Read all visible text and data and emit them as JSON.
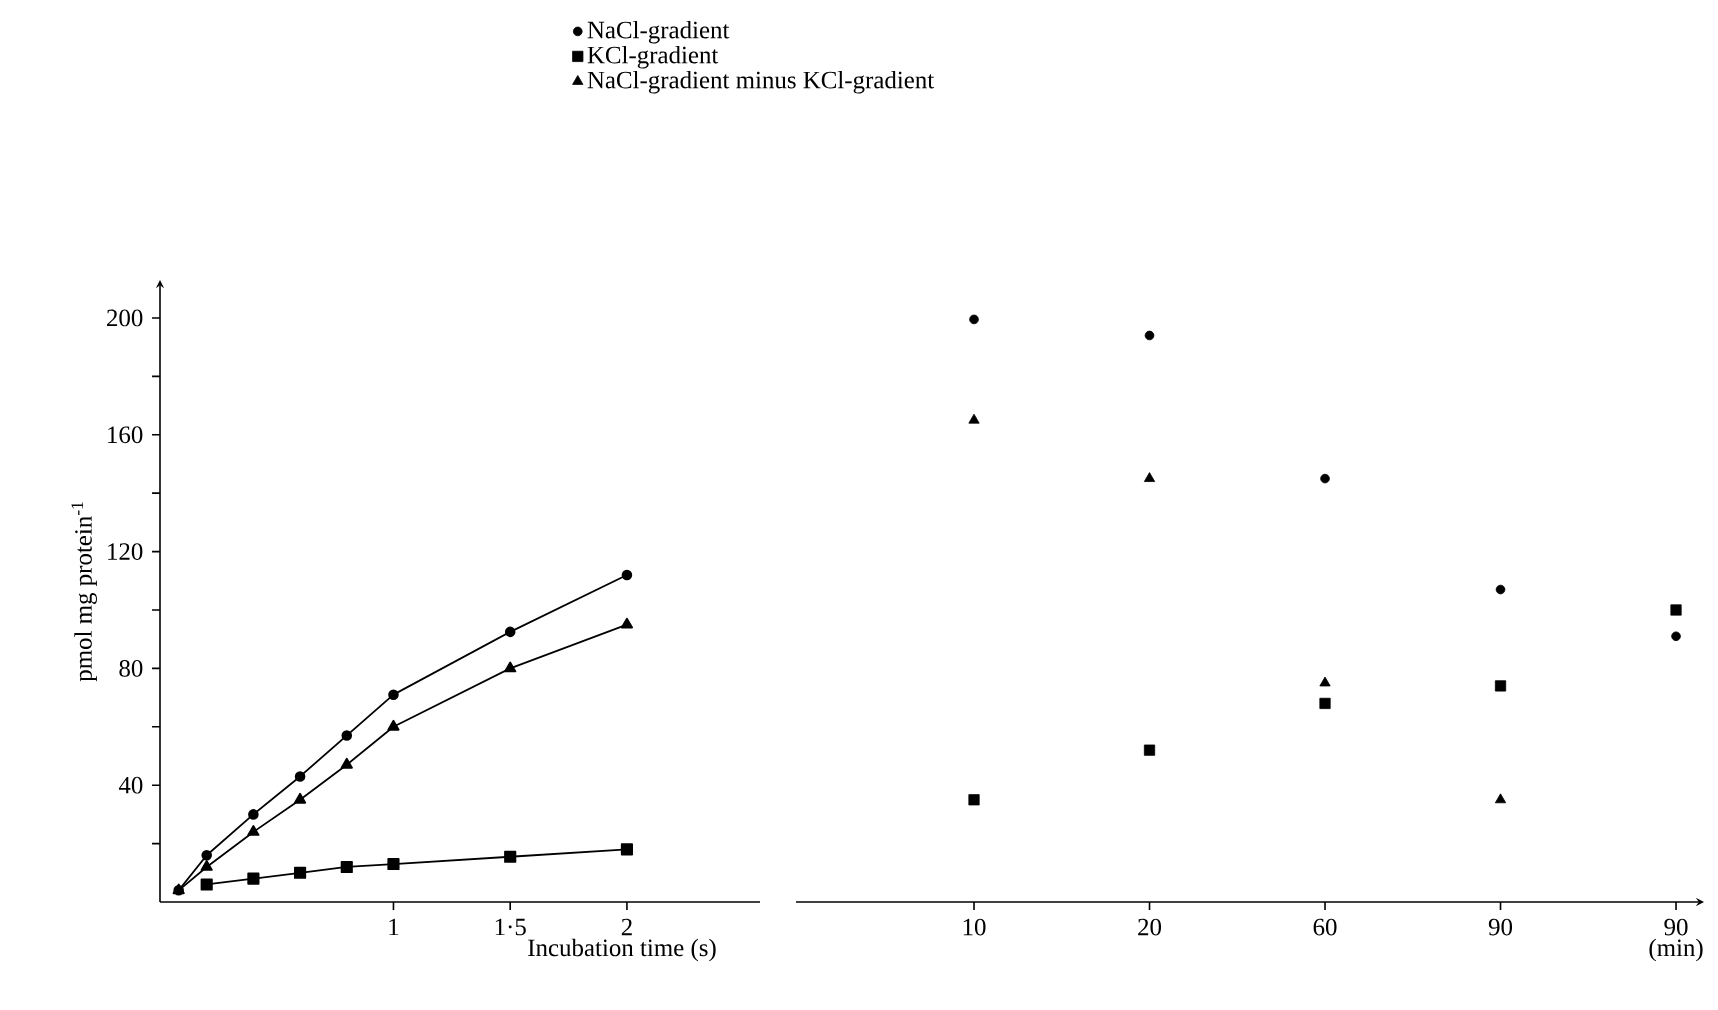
{
  "chart_data": [
    {
      "type": "line",
      "x": [
        0.08,
        0.2,
        0.4,
        0.6,
        0.8,
        1,
        1.5,
        2
      ],
      "xlim": [
        0,
        2.57
      ],
      "xticks": [
        1,
        {
          "value": 1.5,
          "label": "1·5"
        },
        2
      ],
      "ylim": [
        0,
        213
      ],
      "yticks": [
        {
          "value": 20,
          "label": null
        },
        40,
        {
          "value": 60,
          "label": null
        },
        80,
        {
          "value": 100,
          "label": null
        },
        120,
        {
          "value": 140,
          "label": null
        },
        160,
        {
          "value": 180,
          "label": null
        },
        200
      ],
      "xlabel": "Incubation time (s)",
      "ylabel": "pmol mg protein$^{-1}$",
      "legend": "top",
      "line_style": "solid",
      "series": [
        {
          "name": "NaCl-gradient",
          "color": "#000000",
          "marker": "circle",
          "values": [
            4,
            16,
            30,
            43,
            57,
            71,
            92.5,
            112
          ]
        },
        {
          "name": "KCl-gradient",
          "color": "#000000",
          "marker": "square",
          "values": [
            null,
            6,
            8,
            10,
            12,
            13,
            15.5,
            18
          ]
        },
        {
          "name": "NaCl-gradient minus KCl-gradient",
          "color": "#000000",
          "marker": "triangle",
          "values": [
            4,
            12,
            24,
            35,
            47,
            60,
            80,
            95
          ]
        }
      ]
    },
    {
      "type": "scatter",
      "categories": [
        "10",
        "20",
        "60",
        "90",
        "90"
      ],
      "ylim": [
        0,
        200
      ],
      "yticks": [
        40,
        80,
        120,
        160,
        200
      ],
      "tick_labels": "x",
      "xlabel": "(min)",
      "series": [
        {
          "color": "#000000",
          "marker": "circle",
          "values": [
            199.5,
            194,
            145,
            107,
            91
          ]
        },
        {
          "color": "#000000",
          "marker": "square",
          "values": [
            35,
            52,
            68,
            74,
            100
          ]
        },
        {
          "color": "#000000",
          "marker": "triangle",
          "values": [
            165,
            145,
            75,
            35,
            null
          ]
        }
      ]
    }
  ]
}
